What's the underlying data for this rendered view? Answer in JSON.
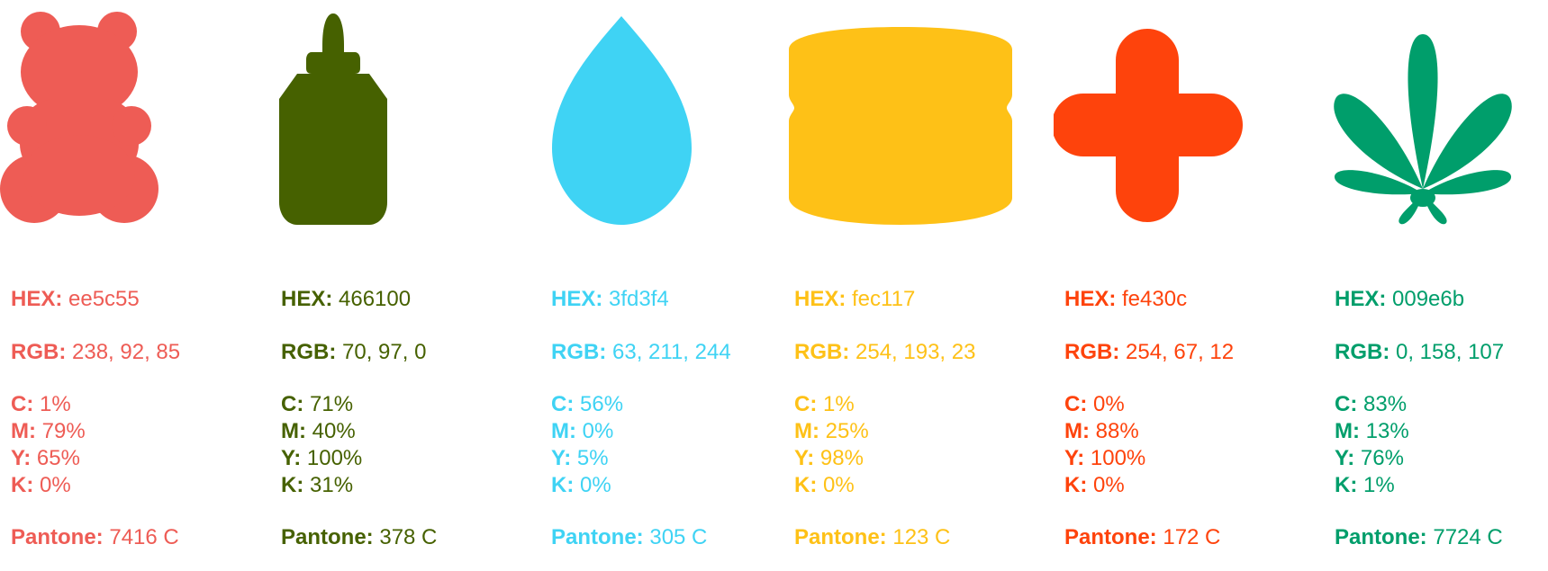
{
  "swatches": [
    {
      "icon": "gummy-bear-icon",
      "color": "#ee5c55",
      "hex_label": "HEX:",
      "hex": "ee5c55",
      "rgb_label": "RGB:",
      "rgb": "238, 92, 85",
      "c_label": "C:",
      "c": "1%",
      "m_label": "M:",
      "m": "79%",
      "y_label": "Y:",
      "y": "65%",
      "k_label": "K:",
      "k": "0%",
      "pantone_label": "Pantone:",
      "pantone": "7416 C"
    },
    {
      "icon": "dropper-bottle-icon",
      "color": "#466100",
      "hex_label": "HEX:",
      "hex": "466100",
      "rgb_label": "RGB:",
      "rgb": "70, 97, 0",
      "c_label": "C:",
      "c": "71%",
      "m_label": "M:",
      "m": "40%",
      "y_label": "Y:",
      "y": "100%",
      "k_label": "K:",
      "k": "31%",
      "pantone_label": "Pantone:",
      "pantone": "378 C"
    },
    {
      "icon": "water-drop-icon",
      "color": "#3fd3f4",
      "hex_label": "HEX:",
      "hex": "3fd3f4",
      "rgb_label": "RGB:",
      "rgb": "63, 211, 244",
      "c_label": "C:",
      "c": "56%",
      "m_label": "M:",
      "m": "0%",
      "y_label": "Y:",
      "y": "5%",
      "k_label": "K:",
      "k": "0%",
      "pantone_label": "Pantone:",
      "pantone": "305 C"
    },
    {
      "icon": "jar-icon",
      "color": "#fec117",
      "hex_label": "HEX:",
      "hex": "fec117",
      "rgb_label": "RGB:",
      "rgb": "254, 193, 23",
      "c_label": "C:",
      "c": "1%",
      "m_label": "M:",
      "m": "25%",
      "y_label": "Y:",
      "y": "98%",
      "k_label": "K:",
      "k": "0%",
      "pantone_label": "Pantone:",
      "pantone": "123 C"
    },
    {
      "icon": "medical-cross-icon",
      "color": "#fe430c",
      "hex_label": "HEX:",
      "hex": "fe430c",
      "rgb_label": "RGB:",
      "rgb": "254, 67, 12",
      "c_label": "C:",
      "c": "0%",
      "m_label": "M:",
      "m": "88%",
      "y_label": "Y:",
      "y": "100%",
      "k_label": "K:",
      "k": "0%",
      "pantone_label": "Pantone:",
      "pantone": "172 C"
    },
    {
      "icon": "cannabis-leaf-icon",
      "color": "#009e6b",
      "hex_label": "HEX:",
      "hex": "009e6b",
      "rgb_label": "RGB:",
      "rgb": "0, 158, 107",
      "c_label": "C:",
      "c": "83%",
      "m_label": "M:",
      "m": "13%",
      "y_label": "Y:",
      "y": "76%",
      "k_label": "K:",
      "k": "1%",
      "pantone_label": "Pantone:",
      "pantone": "7724 C"
    }
  ]
}
